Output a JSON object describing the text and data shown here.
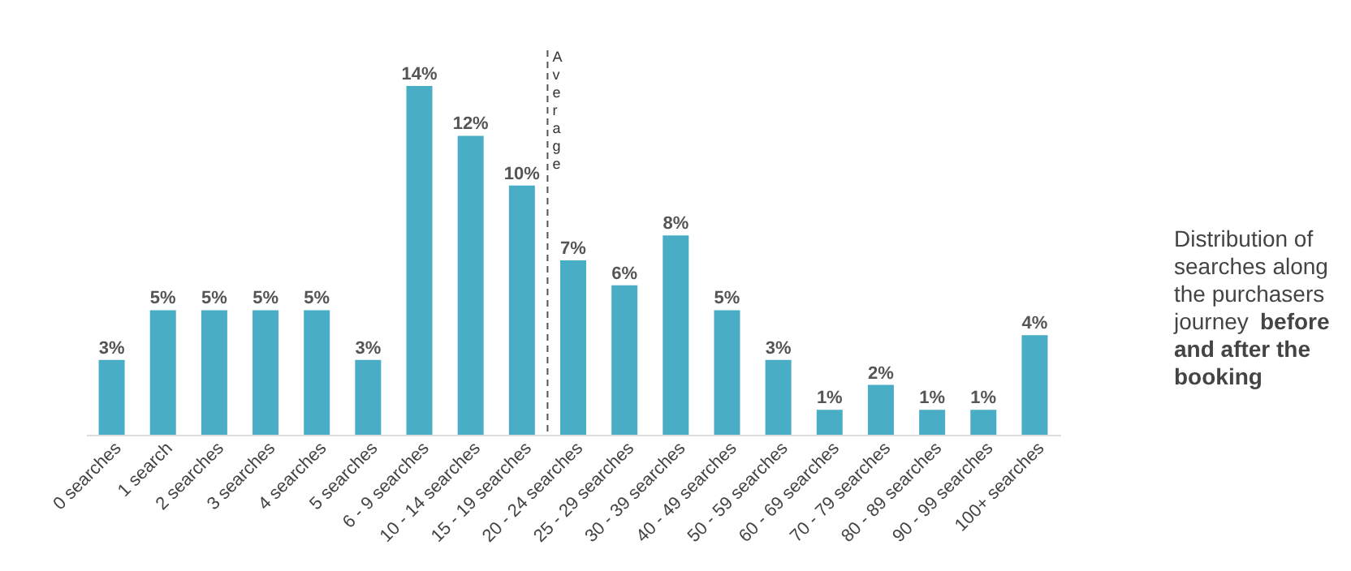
{
  "chart_data": {
    "type": "bar",
    "categories": [
      "0 searches",
      "1 search",
      "2 searches",
      "3 searches",
      "4 searches",
      "5 searches",
      "6 - 9 searches",
      "10 - 14 searches",
      "15 - 19 searches",
      "20 - 24 searches",
      "25 - 29 searches",
      "30 - 39 searches",
      "40 - 49 searches",
      "50 - 59 searches",
      "60 - 69 searches",
      "70 - 79 searches",
      "80 - 89 searches",
      "90 - 99 searches",
      "100+ searches"
    ],
    "values": [
      3,
      5,
      5,
      5,
      5,
      3,
      14,
      12,
      10,
      7,
      6,
      8,
      5,
      3,
      1,
      2,
      1,
      1,
      4
    ],
    "color": "#4aadc6",
    "value_labels": [
      "3%",
      "5%",
      "5%",
      "5%",
      "5%",
      "3%",
      "14%",
      "12%",
      "10%",
      "7%",
      "6%",
      "8%",
      "5%",
      "3%",
      "1%",
      "2%",
      "1%",
      "1%",
      "4%"
    ],
    "annotations": [
      "Average",
      "Distribution of searches along the purchasers journey",
      "before and after the booking"
    ],
    "grid": false
  }
}
